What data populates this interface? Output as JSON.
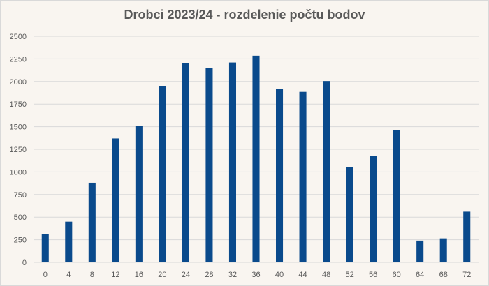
{
  "chart_data": {
    "type": "bar",
    "title": "Drobci 2023/24 - rozdelenie počtu bodov",
    "xlabel": "",
    "ylabel": "",
    "categories": [
      "0",
      "4",
      "8",
      "12",
      "16",
      "20",
      "24",
      "28",
      "32",
      "36",
      "40",
      "44",
      "48",
      "52",
      "56",
      "60",
      "64",
      "68",
      "72"
    ],
    "values": [
      310,
      450,
      880,
      1370,
      1505,
      1945,
      2205,
      2150,
      2210,
      2285,
      1920,
      1885,
      2005,
      1050,
      1175,
      1460,
      240,
      265,
      560
    ],
    "ylim": [
      0,
      2500
    ],
    "yticks": [
      0,
      250,
      500,
      750,
      1000,
      1250,
      1500,
      1750,
      2000,
      2250,
      2500
    ],
    "grid": true,
    "legend": "none",
    "bar_color": "#0a4a8c",
    "grid_color": "#d9d9d9",
    "background": "#f9f5f0"
  }
}
